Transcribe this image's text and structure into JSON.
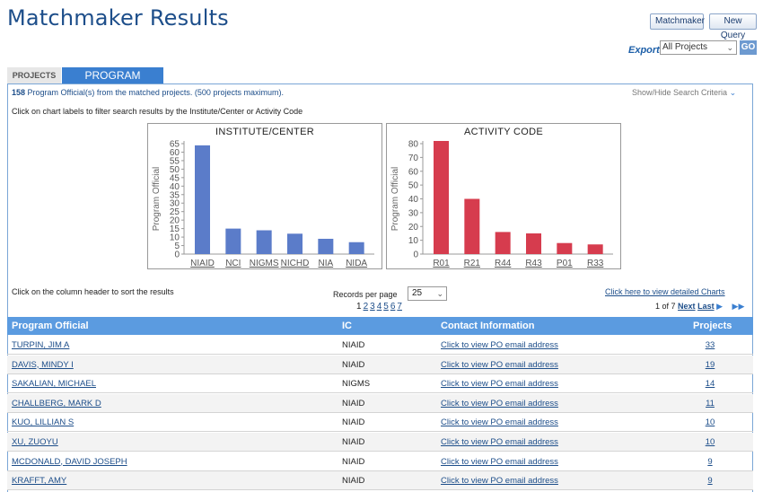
{
  "page_title": "Matchmaker Results",
  "buttons": {
    "matchmaker": "Matchmaker",
    "new_query": "New Query"
  },
  "export": {
    "label": "Export",
    "selected": "All Projects",
    "go": "GO"
  },
  "tabs": [
    {
      "label": "PROJECTS",
      "active": false
    },
    {
      "label": "PROGRAM OFFICIAL",
      "active": true
    }
  ],
  "summary": {
    "count": "158",
    "text": " Program Official(s) from the matched projects. (500 projects maximum)."
  },
  "show_hide": "Show/Hide Search Criteria",
  "instructions": {
    "charts": "Click on chart labels to filter search results by the Institute/Center or Activity Code",
    "sort": "Click on the column header to sort the results"
  },
  "records_per_page": {
    "label": "Records per page",
    "value": "25"
  },
  "pagination": {
    "pages": [
      "1",
      "2",
      "3",
      "4",
      "5",
      "6",
      "7"
    ],
    "current": "1",
    "status": "1 of 7",
    "next": "Next",
    "last": "Last"
  },
  "detail_charts_link": "Click here to view detailed Charts",
  "table": {
    "headers": [
      "Program Official",
      "IC",
      "Contact Information",
      "Projects"
    ],
    "rows": [
      {
        "name": "TURPIN, JIM A",
        "ic": "NIAID",
        "contact": "Click to view PO email address",
        "projects": "33"
      },
      {
        "name": "DAVIS, MINDY I",
        "ic": "NIAID",
        "contact": "Click to view PO email address",
        "projects": "19"
      },
      {
        "name": "SAKALIAN, MICHAEL",
        "ic": "NIGMS",
        "contact": "Click to view PO email address",
        "projects": "14"
      },
      {
        "name": "CHALLBERG, MARK D",
        "ic": "NIAID",
        "contact": "Click to view PO email address",
        "projects": "11"
      },
      {
        "name": "KUO, LILLIAN S",
        "ic": "NIAID",
        "contact": "Click to view PO email address",
        "projects": "10"
      },
      {
        "name": "XU, ZUOYU",
        "ic": "NIAID",
        "contact": "Click to view PO email address",
        "projects": "10"
      },
      {
        "name": "MCDONALD, DAVID JOSEPH",
        "ic": "NIAID",
        "contact": "Click to view PO email address",
        "projects": "9"
      },
      {
        "name": "KRAFFT, AMY",
        "ic": "NIAID",
        "contact": "Click to view PO email address",
        "projects": "9"
      }
    ]
  },
  "chart_data": [
    {
      "type": "bar",
      "title": "INSTITUTE/CENTER",
      "ylabel": "Program Official",
      "categories": [
        "NIAID",
        "NCI",
        "NIGMS",
        "NICHD",
        "NIA",
        "NIDA"
      ],
      "values": [
        64,
        15,
        14,
        12,
        9,
        7
      ],
      "ylim": [
        0,
        65
      ],
      "yticks": [
        0,
        5,
        10,
        15,
        20,
        25,
        30,
        35,
        40,
        45,
        50,
        55,
        60,
        65
      ],
      "color": "#5b7cc9"
    },
    {
      "type": "bar",
      "title": "ACTIVITY CODE",
      "ylabel": "Program Official",
      "categories": [
        "R01",
        "R21",
        "R44",
        "R43",
        "P01",
        "R33"
      ],
      "values": [
        82,
        40,
        16,
        15,
        8,
        7
      ],
      "ylim": [
        0,
        80
      ],
      "yticks": [
        0,
        10,
        20,
        30,
        40,
        50,
        60,
        70,
        80
      ],
      "color": "#d63c4e"
    }
  ]
}
